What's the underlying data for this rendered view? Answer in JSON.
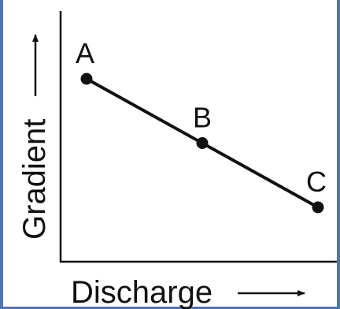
{
  "chart_data": {
    "type": "line",
    "xlabel": "Discharge",
    "ylabel": "Gradient",
    "points": [
      {
        "label": "A",
        "x": 1,
        "y": 3
      },
      {
        "label": "B",
        "x": 2,
        "y": 2
      },
      {
        "label": "C",
        "x": 3,
        "y": 1
      }
    ],
    "grid": false,
    "ticks": false
  }
}
